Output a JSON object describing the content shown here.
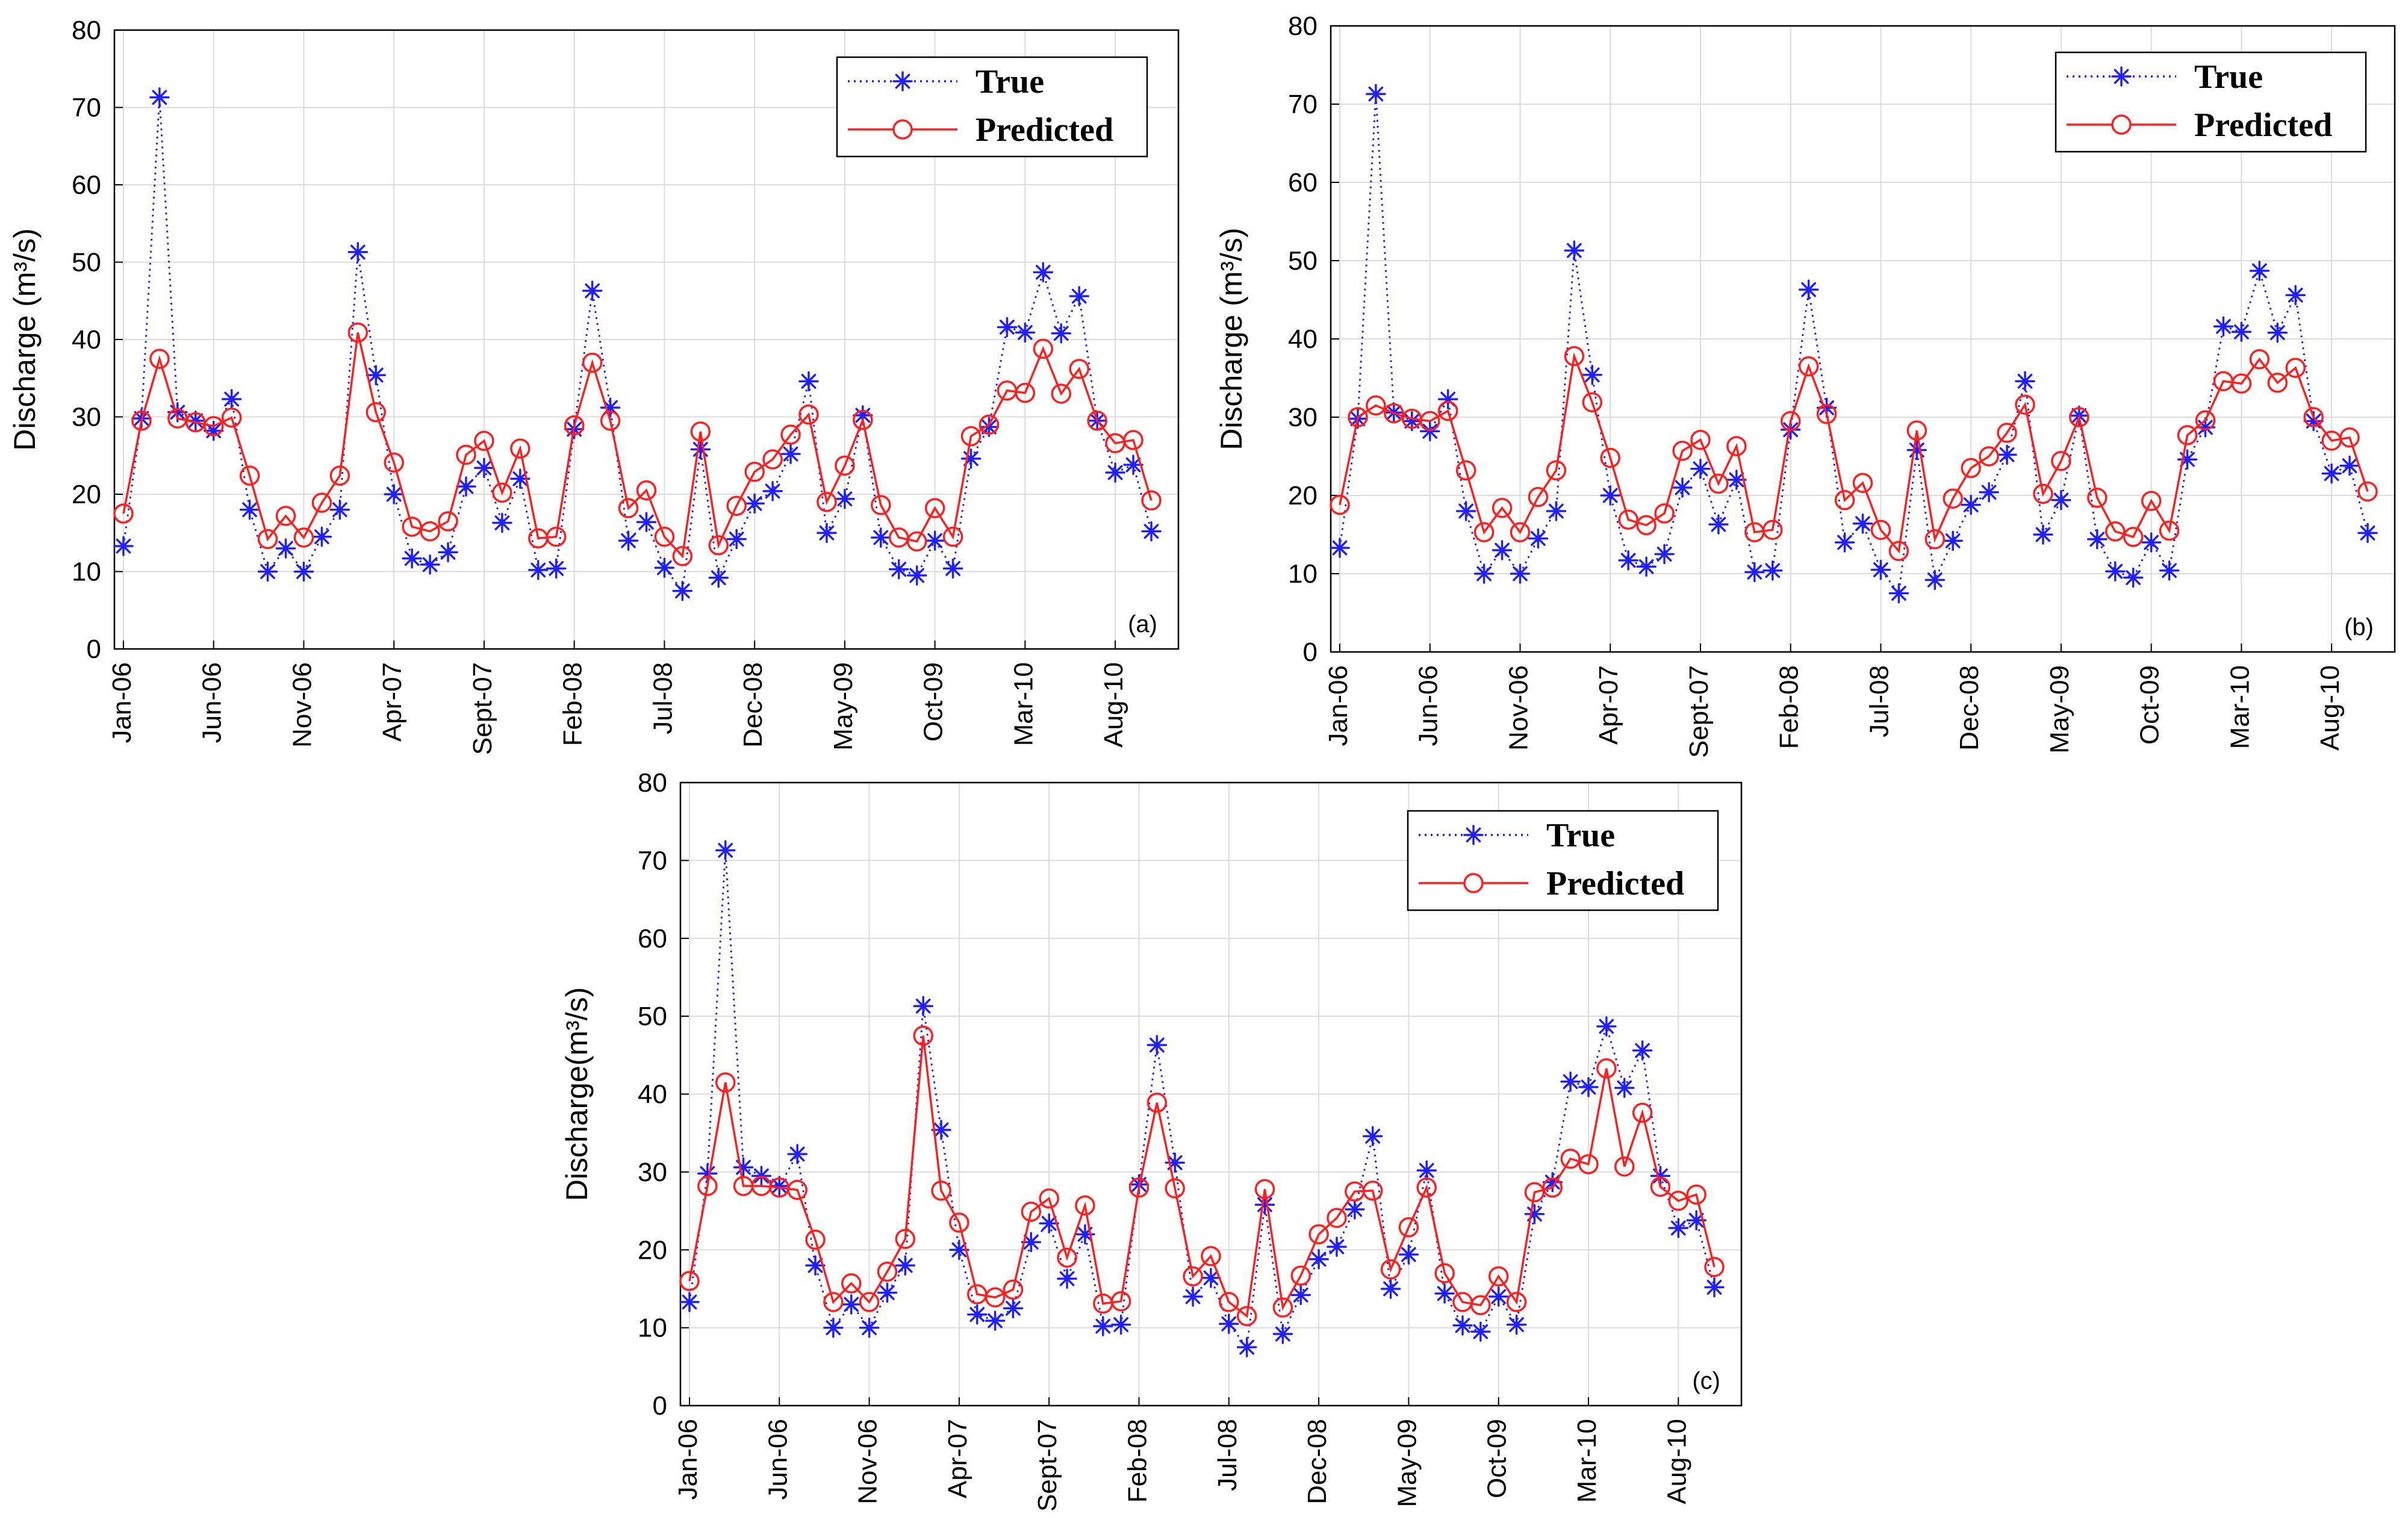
{
  "chart_data": [
    {
      "type": "line",
      "panel_label": "(a)",
      "ylabel": "Discharge (m³/s)",
      "ylim": [
        0,
        80
      ],
      "yticks": [
        "0",
        "10",
        "20",
        "30",
        "40",
        "50",
        "60",
        "70",
        "80"
      ],
      "xtick_labels": [
        "Jan-06",
        "Jun-06",
        "Nov-06",
        "Apr-07",
        "Sept-07",
        "Feb-08",
        "Jul-08",
        "Dec-08",
        "May-09",
        "Oct-09",
        "Mar-10",
        "Aug-10"
      ],
      "xtick_index": [
        0,
        5,
        10,
        15,
        20,
        25,
        30,
        35,
        40,
        45,
        50,
        55
      ],
      "grid": true,
      "legend_position": "top-right",
      "series": [
        {
          "name": "True",
          "color": "#1f1fff",
          "marker": "asterisk",
          "line": "dotted",
          "values": [
            13.3,
            29.8,
            71.3,
            30.6,
            29.5,
            28.2,
            32.3,
            18,
            10,
            13,
            10,
            14.5,
            18,
            51.3,
            35.4,
            20,
            11.7,
            10.9,
            12.5,
            21,
            23.4,
            16.3,
            22,
            10.2,
            10.4,
            28.4,
            46.3,
            31.2,
            14,
            16.4,
            10.5,
            7.5,
            25.8,
            9.2,
            14.2,
            18.8,
            20.4,
            25.2,
            34.6,
            15,
            19.4,
            30.2,
            14.4,
            10.3,
            9.5,
            14,
            10.4,
            24.6,
            28.7,
            41.6,
            40.9,
            48.7,
            40.8,
            45.6,
            29.5,
            22.8,
            23.8,
            15.2
          ]
        },
        {
          "name": "Predicted",
          "color": "#ff1f1f",
          "marker": "circle",
          "line": "solid",
          "values": [
            17.5,
            29.5,
            37.5,
            29.8,
            29.3,
            28.8,
            29.9,
            22.4,
            14.2,
            17.2,
            14.4,
            18.9,
            22.4,
            40.9,
            30.6,
            24.1,
            15.8,
            15.2,
            16.5,
            25.1,
            26.9,
            20.2,
            25.9,
            14.3,
            14.5,
            28.9,
            37,
            29.5,
            18.2,
            20.5,
            14.5,
            12,
            28.1,
            13.4,
            18.5,
            22.9,
            24.5,
            27.7,
            30.3,
            19,
            23.7,
            29.6,
            18.6,
            14.4,
            13.9,
            18.2,
            14.5,
            27.5,
            29,
            33.4,
            33.1,
            38.8,
            33,
            36.2,
            29.5,
            26.6,
            27,
            19.2
          ]
        }
      ]
    },
    {
      "type": "line",
      "panel_label": "(b)",
      "ylabel": "Discharge (m³/s)",
      "ylim": [
        0,
        80
      ],
      "yticks": [
        "0",
        "10",
        "20",
        "30",
        "40",
        "50",
        "60",
        "70",
        "80"
      ],
      "xtick_labels": [
        "Jan-06",
        "Jun-06",
        "Nov-06",
        "Apr-07",
        "Sept-07",
        "Feb-08",
        "Jul-08",
        "Dec-08",
        "May-09",
        "Oct-09",
        "Mar-10",
        "Aug-10"
      ],
      "xtick_index": [
        0,
        5,
        10,
        15,
        20,
        25,
        30,
        35,
        40,
        45,
        50,
        55
      ],
      "grid": true,
      "legend_position": "top-right",
      "series": [
        {
          "name": "True",
          "color": "#1f1fff",
          "marker": "asterisk",
          "line": "dotted",
          "values": [
            13.3,
            29.8,
            71.3,
            30.6,
            29.5,
            28.2,
            32.3,
            18,
            10,
            13,
            10,
            14.5,
            18,
            51.3,
            35.4,
            20,
            11.7,
            10.9,
            12.5,
            21,
            23.4,
            16.3,
            22,
            10.2,
            10.4,
            28.4,
            46.3,
            31.2,
            14,
            16.4,
            10.5,
            7.5,
            25.8,
            9.2,
            14.2,
            18.8,
            20.4,
            25.2,
            34.6,
            15,
            19.4,
            30.2,
            14.4,
            10.3,
            9.5,
            14,
            10.4,
            24.6,
            28.7,
            41.6,
            40.9,
            48.7,
            40.8,
            45.6,
            29.5,
            22.8,
            23.8,
            15.2
          ]
        },
        {
          "name": "Predicted",
          "color": "#ff1f1f",
          "marker": "circle",
          "line": "solid",
          "values": [
            18.8,
            30,
            31.5,
            30.5,
            29.8,
            29.5,
            30.8,
            23.2,
            15.3,
            18.4,
            15.3,
            19.8,
            23.2,
            37.8,
            31.9,
            24.8,
            16.9,
            16.2,
            17.7,
            25.7,
            27.1,
            21.5,
            26.3,
            15.3,
            15.6,
            29.5,
            36.5,
            30.4,
            19.4,
            21.6,
            15.6,
            12.9,
            28.3,
            14.4,
            19.6,
            23.5,
            25,
            28,
            31.6,
            20.2,
            24.4,
            30,
            19.7,
            15.4,
            14.7,
            19.3,
            15.5,
            27.7,
            29.6,
            34.6,
            34.3,
            37.4,
            34.4,
            36.3,
            30,
            27,
            27.4,
            20.5
          ]
        }
      ]
    },
    {
      "type": "line",
      "panel_label": "(c)",
      "ylabel": "Discharge(m³/s)",
      "ylim": [
        0,
        80
      ],
      "yticks": [
        "0",
        "10",
        "20",
        "30",
        "40",
        "50",
        "60",
        "70",
        "80"
      ],
      "xtick_labels": [
        "Jan-06",
        "Jun-06",
        "Nov-06",
        "Apr-07",
        "Sept-07",
        "Feb-08",
        "Jul-08",
        "Dec-08",
        "May-09",
        "Oct-09",
        "Mar-10",
        "Aug-10"
      ],
      "xtick_index": [
        0,
        5,
        10,
        15,
        20,
        25,
        30,
        35,
        40,
        45,
        50,
        55
      ],
      "grid": true,
      "legend_position": "top-right",
      "series": [
        {
          "name": "True",
          "color": "#1f1fff",
          "marker": "asterisk",
          "line": "dotted",
          "values": [
            13.3,
            29.8,
            71.3,
            30.6,
            29.5,
            28.2,
            32.3,
            18,
            10,
            13,
            10,
            14.5,
            18,
            51.3,
            35.4,
            20,
            11.7,
            10.9,
            12.5,
            21,
            23.4,
            16.3,
            22,
            10.2,
            10.4,
            28.4,
            46.3,
            31.2,
            14,
            16.4,
            10.5,
            7.5,
            25.8,
            9.2,
            14.2,
            18.8,
            20.4,
            25.2,
            34.6,
            15,
            19.4,
            30.2,
            14.4,
            10.3,
            9.5,
            14,
            10.4,
            24.6,
            28.7,
            41.6,
            40.9,
            48.7,
            40.8,
            45.6,
            29.5,
            22.8,
            23.8,
            15.2
          ]
        },
        {
          "name": "Predicted",
          "color": "#ff1f1f",
          "marker": "circle",
          "line": "solid",
          "values": [
            16,
            28.2,
            41.5,
            28.2,
            28.2,
            28,
            27.7,
            21.3,
            13.3,
            15.7,
            13.3,
            17.2,
            21.4,
            47.5,
            27.6,
            23.5,
            14.3,
            13.9,
            14.9,
            24.9,
            26.6,
            19,
            25.7,
            13.1,
            13.4,
            28,
            38.9,
            27.9,
            16.6,
            19.2,
            13.3,
            11.5,
            27.8,
            12.6,
            16.7,
            22,
            24.1,
            27.5,
            27.6,
            17.5,
            22.9,
            28,
            17,
            13.3,
            12.9,
            16.6,
            13.3,
            27.4,
            28,
            31.7,
            31,
            43.3,
            30.7,
            37.6,
            28.1,
            26.3,
            27.1,
            17.8
          ]
        }
      ]
    }
  ]
}
